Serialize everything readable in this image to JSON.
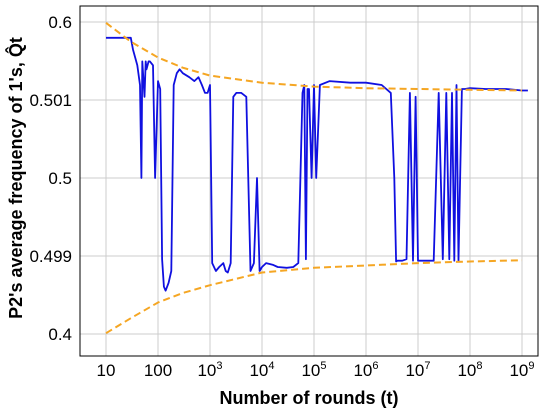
{
  "chart_data": {
    "type": "line",
    "xlabel": "Number of rounds (t)",
    "ylabel": "P2's average frequency of 1's, Q̂t",
    "x_scale": "log",
    "grid": true,
    "x_ticks": [
      {
        "value": 10,
        "base": "10",
        "exp": ""
      },
      {
        "value": 100,
        "base": "100",
        "exp": ""
      },
      {
        "value": 1000,
        "base": "10",
        "exp": "3"
      },
      {
        "value": 10000,
        "base": "10",
        "exp": "4"
      },
      {
        "value": 100000,
        "base": "10",
        "exp": "5"
      },
      {
        "value": 1000000,
        "base": "10",
        "exp": "6"
      },
      {
        "value": 10000000,
        "base": "10",
        "exp": "7"
      },
      {
        "value": 100000000,
        "base": "10",
        "exp": "8"
      },
      {
        "value": 1000000000,
        "base": "10",
        "exp": "9"
      }
    ],
    "y_ticks": [
      "0.6",
      "0.501",
      "0.5",
      "0.499",
      "0.4"
    ],
    "colors": {
      "main": "#1010e0",
      "bounds": "#f5a623",
      "grid": "#cccccc"
    },
    "series": [
      {
        "style": "solid",
        "points": [
          [
            10,
            0.58
          ],
          [
            30,
            0.58
          ],
          [
            33,
            0.565
          ],
          [
            40,
            0.545
          ],
          [
            45,
            0.52
          ],
          [
            48,
            0.5
          ],
          [
            50,
            0.55
          ],
          [
            55,
            0.505
          ],
          [
            58,
            0.55
          ],
          [
            60,
            0.54
          ],
          [
            66,
            0.55
          ],
          [
            70,
            0.55
          ],
          [
            80,
            0.545
          ],
          [
            88,
            0.5
          ],
          [
            100,
            0.525
          ],
          [
            110,
            0.515
          ],
          [
            120,
            0.495
          ],
          [
            130,
            0.46
          ],
          [
            140,
            0.455
          ],
          [
            160,
            0.465
          ],
          [
            180,
            0.48
          ],
          [
            200,
            0.52
          ],
          [
            230,
            0.535
          ],
          [
            260,
            0.54
          ],
          [
            300,
            0.535
          ],
          [
            400,
            0.53
          ],
          [
            500,
            0.525
          ],
          [
            600,
            0.53
          ],
          [
            700,
            0.52
          ],
          [
            800,
            0.51
          ],
          [
            900,
            0.51
          ],
          [
            1000,
            0.52
          ],
          [
            1100,
            0.49
          ],
          [
            1300,
            0.48
          ],
          [
            1500,
            0.485
          ],
          [
            1800,
            0.49
          ],
          [
            2000,
            0.48
          ],
          [
            2200,
            0.478
          ],
          [
            2500,
            0.49
          ],
          [
            2800,
            0.505
          ],
          [
            3200,
            0.51
          ],
          [
            4000,
            0.51
          ],
          [
            5000,
            0.505
          ],
          [
            6000,
            0.48
          ],
          [
            7000,
            0.49
          ],
          [
            8000,
            0.5
          ],
          [
            9000,
            0.48
          ],
          [
            10000,
            0.485
          ],
          [
            12000,
            0.49
          ],
          [
            16000,
            0.488
          ],
          [
            20000,
            0.485
          ],
          [
            30000,
            0.484
          ],
          [
            40000,
            0.485
          ],
          [
            50000,
            0.49
          ],
          [
            60000,
            0.51
          ],
          [
            65000,
            0.52
          ],
          [
            70000,
            0.495
          ],
          [
            75000,
            0.515
          ],
          [
            80000,
            0.515
          ],
          [
            90000,
            0.5
          ],
          [
            100000,
            0.52
          ],
          [
            110000,
            0.5
          ],
          [
            130000,
            0.52
          ],
          [
            200000,
            0.525
          ],
          [
            500000,
            0.523
          ],
          [
            1000000,
            0.523
          ],
          [
            2000000,
            0.52
          ],
          [
            3000000,
            0.51
          ],
          [
            3500000,
            0.5
          ],
          [
            3800000,
            0.492
          ],
          [
            4000000,
            0.493
          ],
          [
            5000000,
            0.493
          ],
          [
            6000000,
            0.495
          ],
          [
            7000000,
            0.51
          ],
          [
            8000000,
            0.493
          ],
          [
            9000000,
            0.505
          ],
          [
            10000000,
            0.493
          ],
          [
            20000000,
            0.493
          ],
          [
            25000000,
            0.51
          ],
          [
            30000000,
            0.495
          ],
          [
            35000000,
            0.51
          ],
          [
            40000000,
            0.495
          ],
          [
            45000000,
            0.51
          ],
          [
            50000000,
            0.493
          ],
          [
            55000000,
            0.52
          ],
          [
            60000000,
            0.493
          ],
          [
            70000000,
            0.515
          ],
          [
            80000000,
            0.515
          ],
          [
            100000000,
            0.516
          ],
          [
            200000000,
            0.515
          ],
          [
            500000000,
            0.515
          ],
          [
            1000000000,
            0.513
          ],
          [
            1300000000,
            0.513
          ]
        ]
      },
      {
        "style": "dashed",
        "points": [
          [
            10,
            0.599
          ],
          [
            30,
            0.575
          ],
          [
            100,
            0.555
          ],
          [
            300,
            0.542
          ],
          [
            1000,
            0.532
          ],
          [
            10000,
            0.523
          ],
          [
            100000,
            0.518
          ],
          [
            1000000,
            0.516
          ],
          [
            10000000,
            0.515
          ],
          [
            100000000,
            0.514
          ],
          [
            1000000000,
            0.513
          ]
        ]
      },
      {
        "style": "dashed",
        "points": [
          [
            10,
            0.401
          ],
          [
            30,
            0.42
          ],
          [
            100,
            0.44
          ],
          [
            300,
            0.452
          ],
          [
            1000,
            0.462
          ],
          [
            10000,
            0.478
          ],
          [
            100000,
            0.484
          ],
          [
            1000000,
            0.487
          ],
          [
            10000000,
            0.49
          ],
          [
            100000000,
            0.492
          ],
          [
            1000000000,
            0.4935
          ]
        ]
      }
    ]
  }
}
